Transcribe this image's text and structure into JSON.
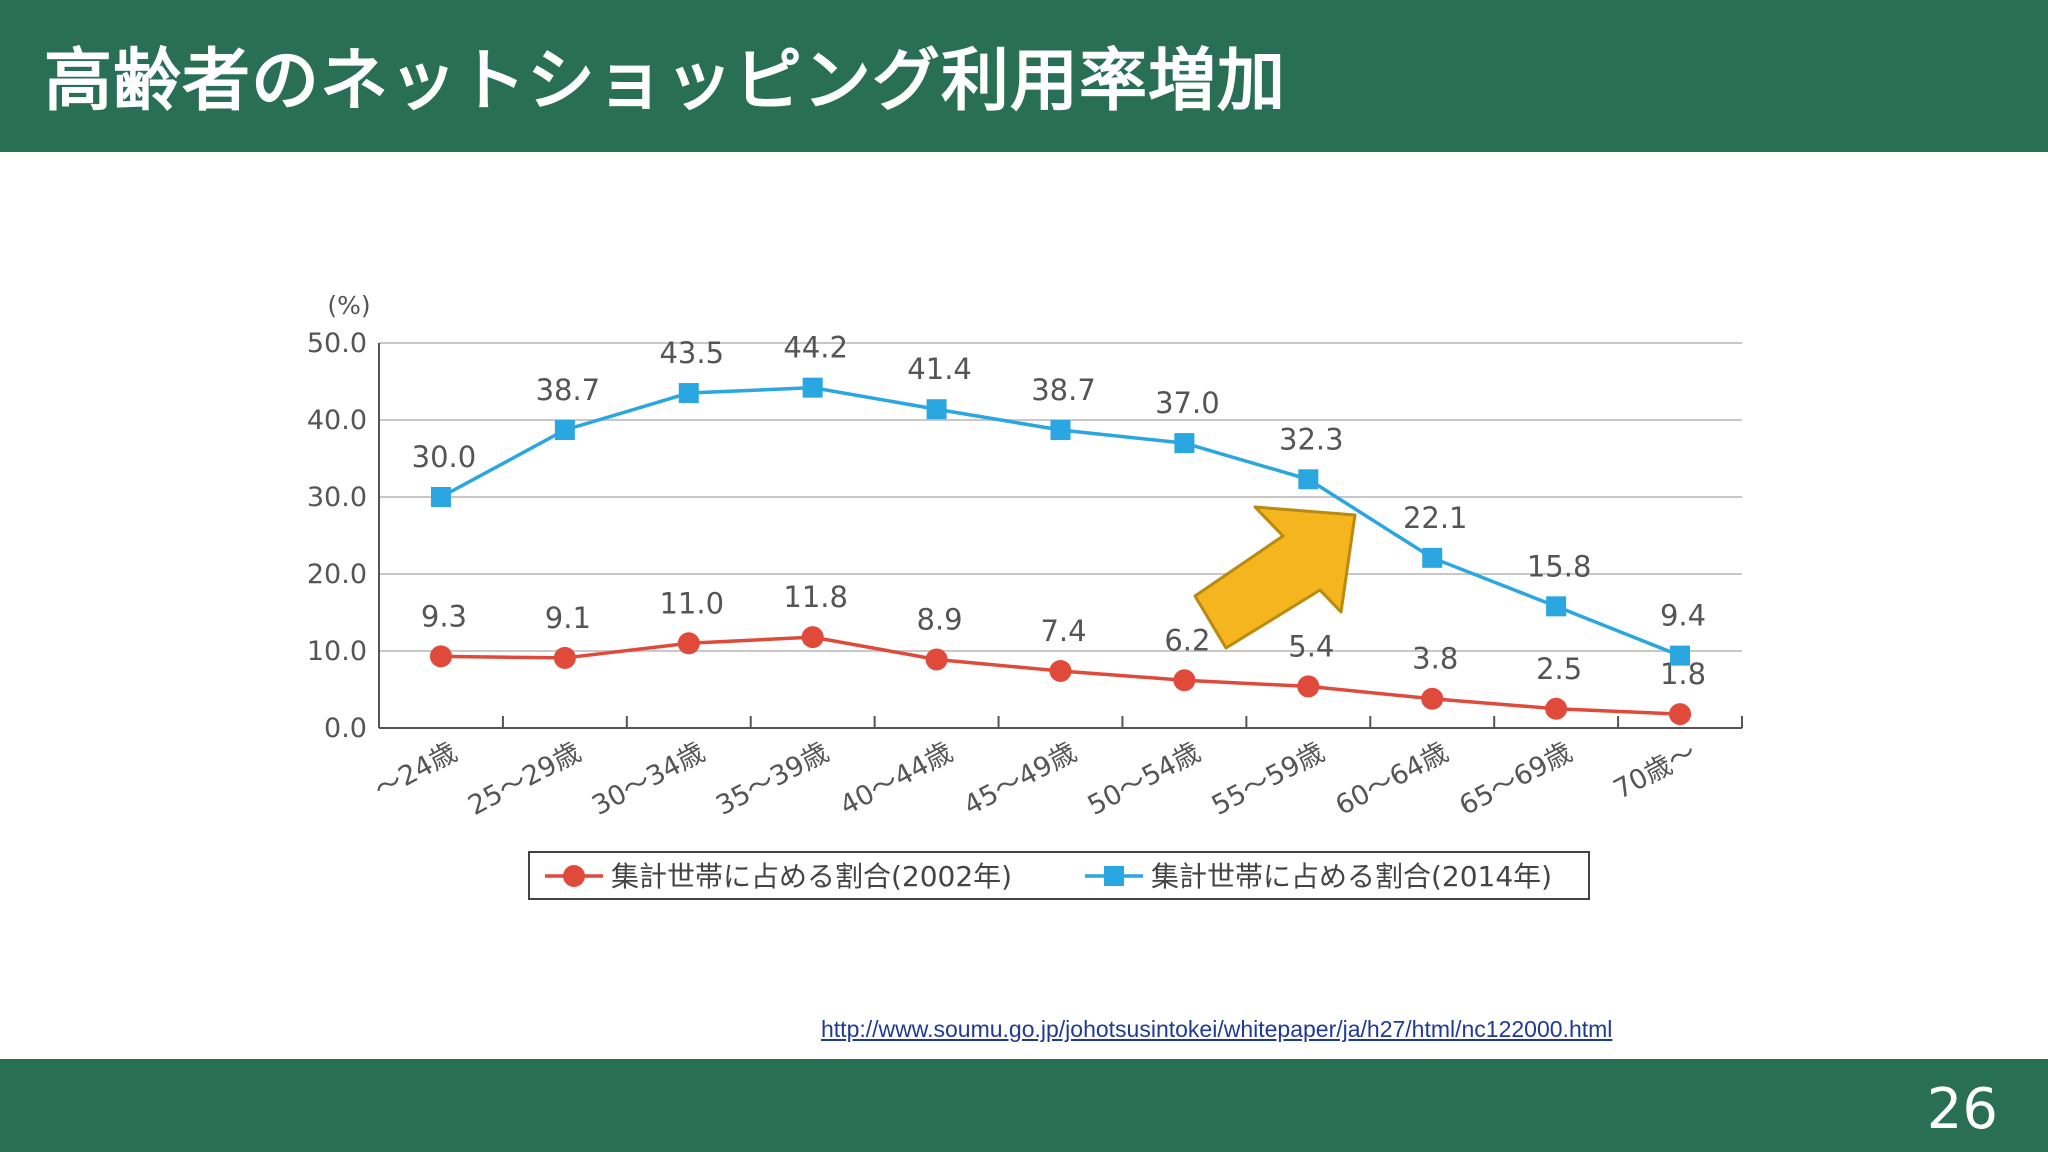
{
  "slide": {
    "title": "高齢者のネットショッピング利用率増加",
    "page_number": "26",
    "source_url": "http://www.soumu.go.jp/johotsusintokei/whitepaper/ja/h27/html/nc122000.html"
  },
  "colors": {
    "header": "#286f55",
    "series_2002": "#e04a3a",
    "series_2014": "#2aa6e0",
    "arrow": "#f5b51f"
  },
  "chart_data": {
    "type": "line",
    "title": "",
    "xlabel": "",
    "ylabel": "",
    "y_unit": "(%)",
    "ylim": [
      0,
      50
    ],
    "y_ticks": [
      "0.0",
      "10.0",
      "20.0",
      "30.0",
      "40.0",
      "50.0"
    ],
    "grid": true,
    "legend_position": "bottom",
    "categories": [
      "～24歳",
      "25～29歳",
      "30～34歳",
      "35～39歳",
      "40～44歳",
      "45～49歳",
      "50～54歳",
      "55～59歳",
      "60～64歳",
      "65～69歳",
      "70歳～"
    ],
    "series": [
      {
        "name": "集計世帯に占める割合(2002年)",
        "marker": "circle",
        "color": "#e04a3a",
        "values": [
          9.3,
          9.1,
          11.0,
          11.8,
          8.9,
          7.4,
          6.2,
          5.4,
          3.8,
          2.5,
          1.8
        ]
      },
      {
        "name": "集計世帯に占める割合(2014年)",
        "marker": "square",
        "color": "#2aa6e0",
        "values": [
          30.0,
          38.7,
          43.5,
          44.2,
          41.4,
          38.7,
          37.0,
          32.3,
          22.1,
          15.8,
          9.4
        ]
      }
    ]
  }
}
